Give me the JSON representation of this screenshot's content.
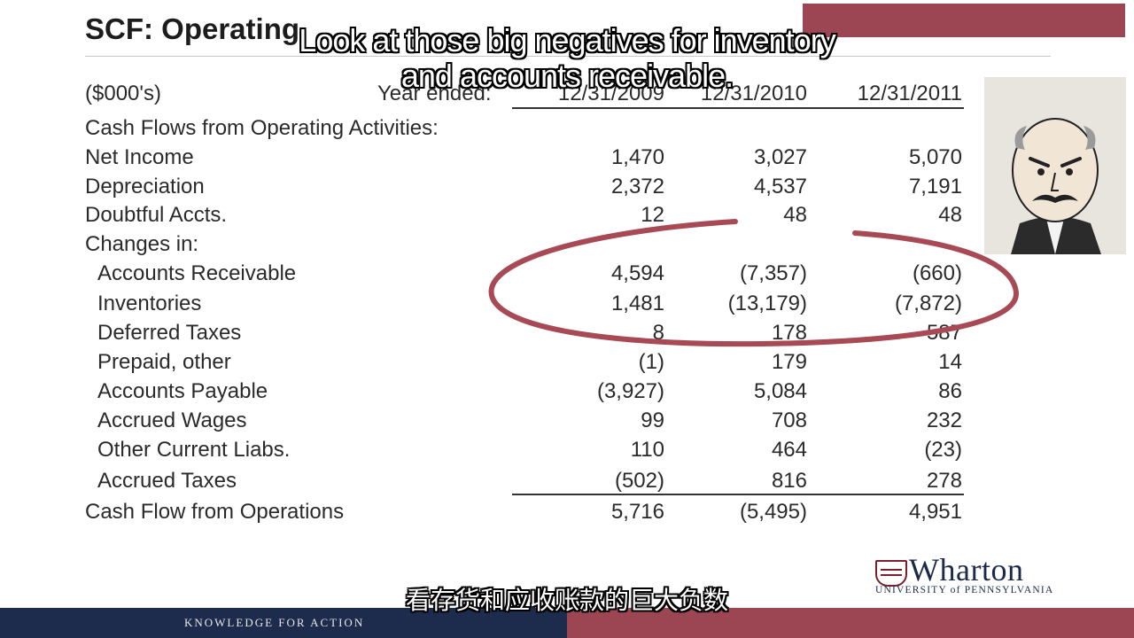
{
  "slide": {
    "title": "SCF: Operating",
    "units": "($000's)",
    "year_ended_label": "Year ended:",
    "years": [
      "12/31/2009",
      "12/31/2010",
      "12/31/2011"
    ],
    "section_heading": "Cash Flows from Operating Activities:",
    "rows": [
      {
        "label": "Net Income",
        "values": [
          "1,470",
          "3,027",
          "5,070"
        ]
      },
      {
        "label": "Depreciation",
        "values": [
          "2,372",
          "4,537",
          "7,191"
        ]
      },
      {
        "label": "Doubtful Accts.",
        "values": [
          "12",
          "48",
          "48"
        ]
      },
      {
        "label": "Changes in:",
        "values": [
          "",
          "",
          ""
        ]
      },
      {
        "label": "Accounts Receivable",
        "values": [
          "4,594",
          "(7,357)",
          "(660)"
        ]
      },
      {
        "label": "Inventories",
        "values": [
          "1,481",
          "(13,179)",
          "(7,872)"
        ]
      },
      {
        "label": "Deferred Taxes",
        "values": [
          "8",
          "178",
          "587"
        ]
      },
      {
        "label": "Prepaid, other",
        "values": [
          "(1)",
          "179",
          "14"
        ]
      },
      {
        "label": "Accounts Payable",
        "values": [
          "(3,927)",
          "5,084",
          "86"
        ]
      },
      {
        "label": "Accrued Wages",
        "values": [
          "99",
          "708",
          "232"
        ]
      },
      {
        "label": "Other Current Liabs.",
        "values": [
          "110",
          "464",
          "(23)"
        ]
      },
      {
        "label": "Accrued Taxes",
        "values": [
          "(502)",
          "816",
          "278"
        ]
      }
    ],
    "total": {
      "label": "Cash Flow from Operations",
      "values": [
        "5,716",
        "(5,495)",
        "4,951"
      ]
    },
    "highlight_color": "#a84a55"
  },
  "captions": {
    "english": "Look at those big negatives for inventory and accounts receivable.",
    "chinese": "看存货和应收账款的巨大负数"
  },
  "branding": {
    "logo_name": "Wharton",
    "logo_sub": "UNIVERSITY of PENNSYLVANIA",
    "footer_tagline": "KNOWLEDGE FOR ACTION",
    "navy": "#1d2c4c",
    "maroon": "#9c4653"
  }
}
